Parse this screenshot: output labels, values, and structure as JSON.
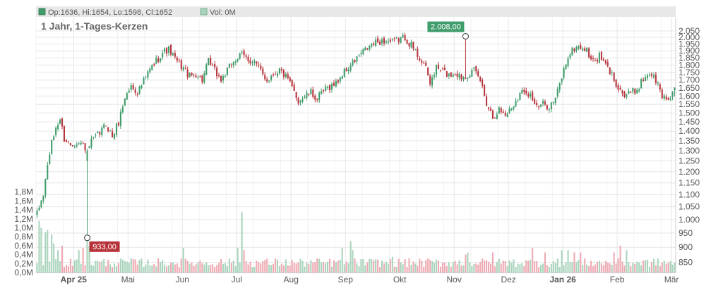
{
  "legend": {
    "ohlc_label": "Op:1636, Hi:1654, Lo:1598, Cl:1652",
    "volume_label": "Vol: 0M"
  },
  "chart_data": {
    "type": "candlestick",
    "title": "1 Jahr, 1-Tages-Kerzen",
    "price_axis": {
      "scale": "log",
      "range": [
        820,
        2060
      ],
      "ticks": [
        850,
        900,
        950,
        1000,
        1050,
        1100,
        1150,
        1200,
        1250,
        1300,
        1350,
        1400,
        1450,
        1500,
        1550,
        1600,
        1650,
        1700,
        1750,
        1800,
        1850,
        1900,
        1950,
        2000,
        2050
      ],
      "tick_labels": [
        "850",
        "900",
        "950",
        "1.000",
        "1.050",
        "1.100",
        "1.150",
        "1.200",
        "1.250",
        "1.300",
        "1.350",
        "1.400",
        "1.450",
        "1.500",
        "1.550",
        "1.600",
        "1.650",
        "1.700",
        "1.750",
        "1.800",
        "1.850",
        "1.900",
        "1.950",
        "2.000",
        "2.050"
      ],
      "position": "right"
    },
    "volume_axis": {
      "range": [
        0,
        2.0
      ],
      "unit": "M",
      "ticks": [
        0,
        0.2,
        0.4,
        0.6,
        0.8,
        1.0,
        1.2,
        1.4,
        1.6,
        1.8
      ],
      "tick_labels": [
        "0,0M",
        "0,2M",
        "0,4M",
        "0,6M",
        "0,8M",
        "1,0M",
        "1,2M",
        "1,4M",
        "1,6M",
        "1,8M"
      ],
      "position": "left"
    },
    "x_axis": {
      "months": [
        {
          "label": "Apr 25",
          "bold": true
        },
        {
          "label": "Mai",
          "bold": false
        },
        {
          "label": "Jun",
          "bold": false
        },
        {
          "label": "Jul",
          "bold": false
        },
        {
          "label": "Aug",
          "bold": false
        },
        {
          "label": "Sep",
          "bold": false
        },
        {
          "label": "Okt",
          "bold": false
        },
        {
          "label": "Nov",
          "bold": false
        },
        {
          "label": "Dez",
          "bold": false
        },
        {
          "label": "Jan 26",
          "bold": true
        },
        {
          "label": "Feb",
          "bold": false
        },
        {
          "label": "Mär",
          "bold": false
        }
      ]
    },
    "grid": true,
    "colors": {
      "up": "#3f9c6b",
      "down": "#b8343c",
      "volume_up": "#a9d4bc",
      "volume_down": "#eeaab2",
      "grid": "#e6e6e6",
      "legend_bg": "#e8e8e8"
    },
    "annotations": [
      {
        "label": "2.008,00",
        "value": 2008,
        "kind": "high",
        "day": 205
      },
      {
        "label": "933,00",
        "value": 933,
        "kind": "low",
        "day": 24
      }
    ],
    "anchors": [
      [
        0,
        1020
      ],
      [
        3,
        1100
      ],
      [
        6,
        1290
      ],
      [
        9,
        1420
      ],
      [
        11,
        1465
      ],
      [
        13,
        1360
      ],
      [
        16,
        1330
      ],
      [
        19,
        1345
      ],
      [
        22,
        1330
      ],
      [
        24,
        1300
      ],
      [
        26,
        1345
      ],
      [
        30,
        1390
      ],
      [
        33,
        1440
      ],
      [
        36,
        1370
      ],
      [
        39,
        1450
      ],
      [
        42,
        1590
      ],
      [
        45,
        1660
      ],
      [
        48,
        1625
      ],
      [
        51,
        1690
      ],
      [
        54,
        1770
      ],
      [
        57,
        1830
      ],
      [
        60,
        1890
      ],
      [
        63,
        1910
      ],
      [
        66,
        1840
      ],
      [
        70,
        1780
      ],
      [
        73,
        1720
      ],
      [
        76,
        1740
      ],
      [
        79,
        1700
      ],
      [
        82,
        1820
      ],
      [
        85,
        1760
      ],
      [
        88,
        1700
      ],
      [
        91,
        1760
      ],
      [
        94,
        1830
      ],
      [
        98,
        1870
      ],
      [
        101,
        1840
      ],
      [
        104,
        1820
      ],
      [
        107,
        1760
      ],
      [
        110,
        1700
      ],
      [
        113,
        1740
      ],
      [
        116,
        1770
      ],
      [
        119,
        1720
      ],
      [
        122,
        1650
      ],
      [
        125,
        1570
      ],
      [
        128,
        1600
      ],
      [
        131,
        1620
      ],
      [
        134,
        1580
      ],
      [
        137,
        1630
      ],
      [
        140,
        1660
      ],
      [
        143,
        1680
      ],
      [
        146,
        1740
      ],
      [
        149,
        1780
      ],
      [
        152,
        1830
      ],
      [
        155,
        1880
      ],
      [
        158,
        1920
      ],
      [
        161,
        1950
      ],
      [
        164,
        1970
      ],
      [
        167,
        1975
      ],
      [
        170,
        1960
      ],
      [
        173,
        1985
      ],
      [
        176,
        2000
      ],
      [
        179,
        1940
      ],
      [
        182,
        1870
      ],
      [
        185,
        1810
      ],
      [
        188,
        1680
      ],
      [
        191,
        1780
      ],
      [
        194,
        1760
      ],
      [
        197,
        1730
      ],
      [
        200,
        1750
      ],
      [
        203,
        1720
      ],
      [
        206,
        1740
      ],
      [
        209,
        1760
      ],
      [
        212,
        1700
      ],
      [
        215,
        1560
      ],
      [
        218,
        1480
      ],
      [
        221,
        1520
      ],
      [
        224,
        1490
      ],
      [
        227,
        1530
      ],
      [
        230,
        1600
      ],
      [
        233,
        1640
      ],
      [
        236,
        1610
      ],
      [
        239,
        1530
      ],
      [
        242,
        1550
      ],
      [
        245,
        1540
      ],
      [
        248,
        1580
      ],
      [
        251,
        1720
      ],
      [
        254,
        1860
      ],
      [
        257,
        1920
      ],
      [
        260,
        1930
      ],
      [
        263,
        1900
      ],
      [
        266,
        1820
      ],
      [
        269,
        1860
      ],
      [
        272,
        1800
      ],
      [
        275,
        1730
      ],
      [
        278,
        1660
      ],
      [
        281,
        1600
      ],
      [
        284,
        1620
      ],
      [
        287,
        1640
      ],
      [
        290,
        1710
      ],
      [
        293,
        1750
      ],
      [
        296,
        1700
      ],
      [
        299,
        1600
      ],
      [
        302,
        1580
      ],
      [
        305,
        1652
      ]
    ],
    "volume_spikes": [
      {
        "day": 1,
        "value": 1.15
      },
      {
        "day": 2,
        "value": 1.0
      },
      {
        "day": 4,
        "value": 0.9
      },
      {
        "day": 5,
        "value": 0.95
      },
      {
        "day": 7,
        "value": 0.85
      },
      {
        "day": 8,
        "value": 0.65
      },
      {
        "day": 10,
        "value": 0.5
      },
      {
        "day": 12,
        "value": 0.6
      },
      {
        "day": 20,
        "value": 0.5
      },
      {
        "day": 22,
        "value": 0.55
      },
      {
        "day": 24,
        "value": 0.85
      },
      {
        "day": 25,
        "value": 0.6
      },
      {
        "day": 70,
        "value": 0.55
      },
      {
        "day": 96,
        "value": 0.55
      },
      {
        "day": 98,
        "value": 1.35
      },
      {
        "day": 99,
        "value": 0.5
      },
      {
        "day": 146,
        "value": 0.55
      },
      {
        "day": 150,
        "value": 0.7
      },
      {
        "day": 151,
        "value": 0.5
      },
      {
        "day": 170,
        "value": 0.35
      },
      {
        "day": 205,
        "value": 0.4
      },
      {
        "day": 206,
        "value": 0.45
      },
      {
        "day": 218,
        "value": 0.45
      },
      {
        "day": 237,
        "value": 0.55
      },
      {
        "day": 243,
        "value": 0.45
      },
      {
        "day": 251,
        "value": 0.5
      },
      {
        "day": 254,
        "value": 0.5
      },
      {
        "day": 257,
        "value": 0.45
      },
      {
        "day": 260,
        "value": 0.45
      },
      {
        "day": 276,
        "value": 0.45
      },
      {
        "day": 279,
        "value": 0.6
      },
      {
        "day": 282,
        "value": 0.5
      }
    ],
    "num_days": 306
  }
}
